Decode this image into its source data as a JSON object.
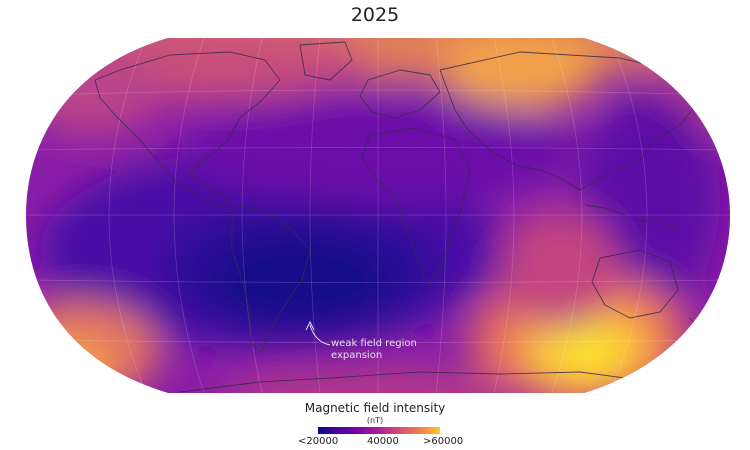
{
  "title": "2025",
  "annotation": {
    "line1": "weak field region",
    "line2": "expansion"
  },
  "legend": {
    "title": "Magnetic field intensity",
    "unit": "(nT)",
    "ticks": [
      "<20000",
      "40000",
      ">60000"
    ],
    "colormap": [
      "#0d0887",
      "#46039f",
      "#7201a8",
      "#9c179e",
      "#bd3786",
      "#d8576b",
      "#ed7953",
      "#fb9f3a",
      "#fdca26"
    ]
  },
  "projection": "Robinson-like",
  "colors": {
    "land_outline": "#3a2a4a",
    "graticule": "#ffffff"
  }
}
